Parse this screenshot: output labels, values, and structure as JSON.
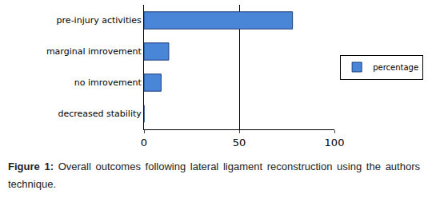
{
  "chart_data": {
    "type": "bar",
    "orientation": "horizontal",
    "title": "Figure 1: Overall outcomes following lateral ligament reconstruction using the authors technique.",
    "categories": [
      "pre-injury activities",
      "marginal imrovement",
      "no imrovement",
      "decreased stability"
    ],
    "series": [
      {
        "name": "percentage",
        "color": "#4a86d8",
        "values": [
          78,
          13,
          9,
          0
        ]
      }
    ],
    "xlim": [
      0,
      100
    ],
    "xticks": [
      0,
      50,
      100
    ],
    "grid": true,
    "legend": "right"
  }
}
